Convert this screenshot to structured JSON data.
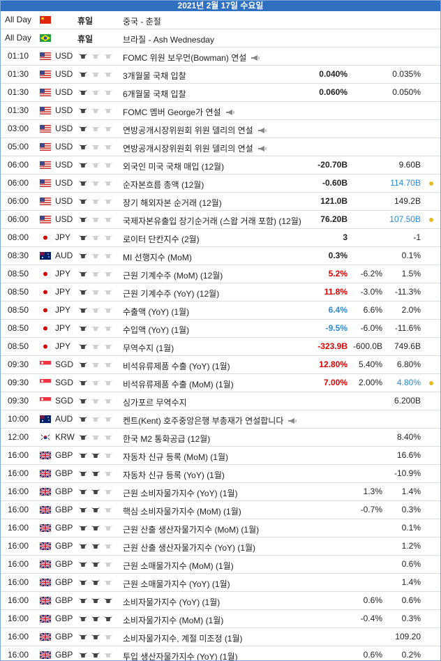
{
  "header": {
    "date": "2021년 2월 17일 수요일"
  },
  "rows": [
    {
      "time": "All Day",
      "flag": "cn",
      "holiday": "휴일",
      "event": "중국 - 춘절"
    },
    {
      "time": "All Day",
      "flag": "br",
      "holiday": "휴일",
      "event": "브라질 - Ash Wednesday"
    },
    {
      "time": "01:10",
      "flag": "us",
      "currency": "USD",
      "importance": 1,
      "event": "FOMC 위원 보우먼(Bowman) 연설",
      "speech": true
    },
    {
      "time": "01:30",
      "flag": "us",
      "currency": "USD",
      "importance": 1,
      "event": "3개월물 국채 입찰",
      "actual": "0.040%",
      "previous": "0.035%"
    },
    {
      "time": "01:30",
      "flag": "us",
      "currency": "USD",
      "importance": 1,
      "event": "6개월물 국채 입찰",
      "actual": "0.060%",
      "previous": "0.050%"
    },
    {
      "time": "01:30",
      "flag": "us",
      "currency": "USD",
      "importance": 1,
      "event": "FOMC 멤버 George가 연설",
      "speech": true
    },
    {
      "time": "03:00",
      "flag": "us",
      "currency": "USD",
      "importance": 1,
      "event": "연방공개시장위원회 위원 델리의 연설",
      "speech": true
    },
    {
      "time": "05:00",
      "flag": "us",
      "currency": "USD",
      "importance": 1,
      "event": "연방공개시장위원회 위원 델리의 연설",
      "speech": true
    },
    {
      "time": "06:00",
      "flag": "us",
      "currency": "USD",
      "importance": 1,
      "event": "외국인 미국 국채 매입 (12월)",
      "actual": "-20.70B",
      "previous": "9.60B"
    },
    {
      "time": "06:00",
      "flag": "us",
      "currency": "USD",
      "importance": 1,
      "event": "순자본흐름 총액 (12월)",
      "actual": "-0.60B",
      "previous": "114.70B",
      "previous_color": "#2a8ad8"
    },
    {
      "time": "06:00",
      "flag": "us",
      "currency": "USD",
      "importance": 1,
      "event": "장기 해외자본 순거래 (12월)",
      "actual": "121.0B",
      "previous": "149.2B"
    },
    {
      "time": "06:00",
      "flag": "us",
      "currency": "USD",
      "importance": 1,
      "event": "국제자본유출입 장기순거래 (스왑 거래 포함) (12월)",
      "actual": "76.20B",
      "previous": "107.50B",
      "previous_color": "#2a8ad8"
    },
    {
      "time": "08:00",
      "flag": "jp",
      "currency": "JPY",
      "importance": 1,
      "event": "로이터 단칸지수 (2월)",
      "actual": "3",
      "previous": "-1"
    },
    {
      "time": "08:30",
      "flag": "au",
      "currency": "AUD",
      "importance": 1,
      "event": "MI 선행지수 (MoM)",
      "actual": "0.3%",
      "previous": "0.1%"
    },
    {
      "time": "08:50",
      "flag": "jp",
      "currency": "JPY",
      "importance": 1,
      "event": "근원 기계수주 (MoM) (12월)",
      "actual": "5.2%",
      "actual_color": "#e00000",
      "forecast": "-6.2%",
      "previous": "1.5%"
    },
    {
      "time": "08:50",
      "flag": "jp",
      "currency": "JPY",
      "importance": 1,
      "event": "근원 기계수주 (YoY) (12월)",
      "actual": "11.8%",
      "actual_color": "#e00000",
      "forecast": "-3.0%",
      "previous": "-11.3%"
    },
    {
      "time": "08:50",
      "flag": "jp",
      "currency": "JPY",
      "importance": 1,
      "event": "수출액 (YoY) (1월)",
      "actual": "6.4%",
      "actual_color": "#2a8ad8",
      "forecast": "6.6%",
      "previous": "2.0%"
    },
    {
      "time": "08:50",
      "flag": "jp",
      "currency": "JPY",
      "importance": 1,
      "event": "수입액 (YoY) (1월)",
      "actual": "-9.5%",
      "actual_color": "#2a8ad8",
      "forecast": "-6.0%",
      "previous": "-11.6%"
    },
    {
      "time": "08:50",
      "flag": "jp",
      "currency": "JPY",
      "importance": 1,
      "event": "무역수지 (1월)",
      "actual": "-323.9B",
      "actual_color": "#e00000",
      "forecast": "-600.0B",
      "previous": "749.6B"
    },
    {
      "time": "09:30",
      "flag": "sg",
      "currency": "SGD",
      "importance": 1,
      "event": "비석유류제품 수출 (YoY) (1월)",
      "actual": "12.80%",
      "actual_color": "#e00000",
      "forecast": "5.40%",
      "previous": "6.80%"
    },
    {
      "time": "09:30",
      "flag": "sg",
      "currency": "SGD",
      "importance": 1,
      "event": "비석유류제품 수출 (MoM) (1월)",
      "actual": "7.00%",
      "actual_color": "#e00000",
      "forecast": "2.00%",
      "previous": "4.80%",
      "previous_color": "#2a8ad8"
    },
    {
      "time": "09:30",
      "flag": "sg",
      "currency": "SGD",
      "importance": 1,
      "event": "싱가포르 무역수지",
      "previous": "6.200B"
    },
    {
      "time": "10:00",
      "flag": "au",
      "currency": "AUD",
      "importance": 1,
      "event": "켄트(Kent) 호주중앙은행 부총재가 연설합니다",
      "speech": true
    },
    {
      "time": "12:00",
      "flag": "kr",
      "currency": "KRW",
      "importance": 1,
      "event": "한국 M2 통화공급 (12월)",
      "previous": "8.40%"
    },
    {
      "time": "16:00",
      "flag": "gb",
      "currency": "GBP",
      "importance": 2,
      "event": "자동차 신규 등록 (MoM) (1월)",
      "previous": "16.6%"
    },
    {
      "time": "16:00",
      "flag": "gb",
      "currency": "GBP",
      "importance": 2,
      "event": "자동차 신규 등록 (YoY) (1월)",
      "previous": "-10.9%"
    },
    {
      "time": "16:00",
      "flag": "gb",
      "currency": "GBP",
      "importance": 2,
      "event": "근원 소비자물가지수 (YoY) (1월)",
      "forecast": "1.3%",
      "previous": "1.4%"
    },
    {
      "time": "16:00",
      "flag": "gb",
      "currency": "GBP",
      "importance": 2,
      "event": "핵심 소비자물가지수 (MoM) (1월)",
      "forecast": "-0.7%",
      "previous": "0.3%"
    },
    {
      "time": "16:00",
      "flag": "gb",
      "currency": "GBP",
      "importance": 2,
      "event": "근원 산출 생산자물가지수 (MoM) (1월)",
      "previous": "0.1%"
    },
    {
      "time": "16:00",
      "flag": "gb",
      "currency": "GBP",
      "importance": 2,
      "event": "근원 산출 생산자물가지수 (YoY) (1월)",
      "previous": "1.2%"
    },
    {
      "time": "16:00",
      "flag": "gb",
      "currency": "GBP",
      "importance": 2,
      "event": "근원 소매물가지수 (MoM) (1월)",
      "previous": "0.6%"
    },
    {
      "time": "16:00",
      "flag": "gb",
      "currency": "GBP",
      "importance": 2,
      "event": "근원 소매물가지수 (YoY) (1월)",
      "previous": "1.4%"
    },
    {
      "time": "16:00",
      "flag": "gb",
      "currency": "GBP",
      "importance": 3,
      "event": "소비자물가지수 (YoY) (1월)",
      "forecast": "0.6%",
      "previous": "0.6%"
    },
    {
      "time": "16:00",
      "flag": "gb",
      "currency": "GBP",
      "importance": 3,
      "event": "소비자물가지수 (MoM) (1월)",
      "forecast": "-0.4%",
      "previous": "0.3%"
    },
    {
      "time": "16:00",
      "flag": "gb",
      "currency": "GBP",
      "importance": 2,
      "event": "소비자물가지수, 계절 미조정 (1월)",
      "previous": "109.20"
    },
    {
      "time": "16:00",
      "flag": "gb",
      "currency": "GBP",
      "importance": 2,
      "event": "투입 생산자물가지수 (YoY) (1월)",
      "forecast": "0.6%",
      "previous": "0.2%"
    }
  ]
}
